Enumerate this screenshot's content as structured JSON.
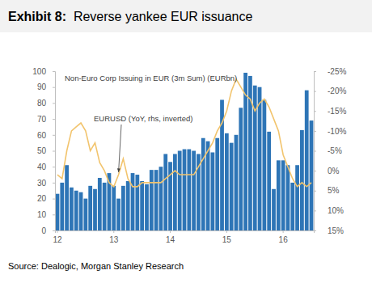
{
  "chart_data": {
    "type": "bar",
    "title": "Exhibit 8:  Reverse yankee EUR issuance",
    "source": "Source: Dealogic, Morgan Stanley Research",
    "categories": [
      "12",
      null,
      null,
      null,
      null,
      null,
      null,
      null,
      null,
      null,
      null,
      null,
      "13",
      null,
      null,
      null,
      null,
      null,
      null,
      null,
      null,
      null,
      null,
      null,
      "14",
      null,
      null,
      null,
      null,
      null,
      null,
      null,
      null,
      null,
      null,
      null,
      "15",
      null,
      null,
      null,
      null,
      null,
      null,
      null,
      null,
      null,
      null,
      null,
      "16",
      null,
      null,
      null,
      null,
      null,
      null
    ],
    "series": [
      {
        "name": "Non-Euro Corp Issuing in EUR (3m Sum) (EURbn)",
        "type": "bar",
        "color": "#2e75b6",
        "values": [
          23,
          30,
          41,
          27,
          25,
          24,
          20,
          28,
          26,
          33,
          30,
          36,
          28,
          20,
          28,
          31,
          36,
          35,
          31,
          29,
          38,
          38,
          40,
          48,
          43,
          48,
          50,
          51,
          51,
          50,
          48,
          58,
          56,
          49,
          58,
          82,
          61,
          55,
          60,
          77,
          99,
          97,
          91,
          90,
          82,
          62,
          26,
          44,
          44,
          41,
          30,
          41,
          63,
          88,
          69
        ]
      },
      {
        "name": "EURUSD (YoY, rhs, inverted)",
        "type": "line",
        "axis": "y2",
        "color": "#f2c46d",
        "line_style": "solid",
        "values": [
          1,
          2,
          -5,
          -10,
          -11,
          -12,
          -10,
          -5,
          -7,
          -2,
          0,
          3,
          4,
          1,
          -3,
          2,
          4,
          4,
          3,
          3,
          3,
          3,
          3,
          2,
          1,
          0,
          1,
          1,
          1,
          1,
          -1,
          -3,
          -5,
          -7,
          -10,
          -12,
          -15,
          -20,
          -23,
          -21,
          -19,
          -18,
          -15,
          -17,
          -18,
          -16,
          -13,
          -10,
          -4,
          -1,
          2,
          4,
          3,
          4,
          3
        ]
      }
    ],
    "ylim": [
      0,
      100
    ],
    "yticks": [
      0,
      10,
      20,
      30,
      40,
      50,
      60,
      70,
      80,
      90,
      100
    ],
    "y2lim": [
      15,
      -25
    ],
    "y2ticks": [
      {
        "value": 15,
        "label": "15%"
      },
      {
        "value": 10,
        "label": "10%"
      },
      {
        "value": 5,
        "label": "5%"
      },
      {
        "value": 0,
        "label": "0%"
      },
      {
        "value": -5,
        "label": "-5%"
      },
      {
        "value": -10,
        "label": "-10%"
      },
      {
        "value": -15,
        "label": "-15%"
      },
      {
        "value": -20,
        "label": "-20%"
      },
      {
        "value": -25,
        "label": "-25%"
      }
    ],
    "grid": false
  }
}
